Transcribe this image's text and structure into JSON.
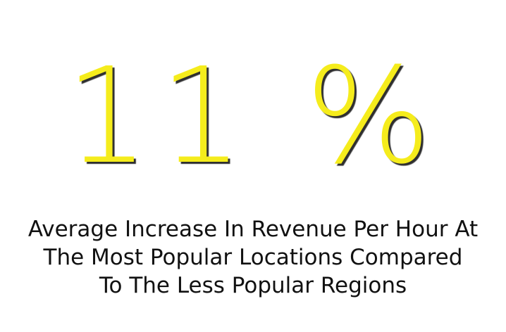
{
  "stat": {
    "value": "11 %",
    "color": "#f5ec1c",
    "shadow_color": "#2f2f2f"
  },
  "caption": {
    "lines": [
      "Average Increase In Revenue Per Hour At",
      "The Most Popular Locations Compared",
      "To The Less Popular Regions"
    ],
    "color": "#111111"
  },
  "background_color": "#ffffff"
}
